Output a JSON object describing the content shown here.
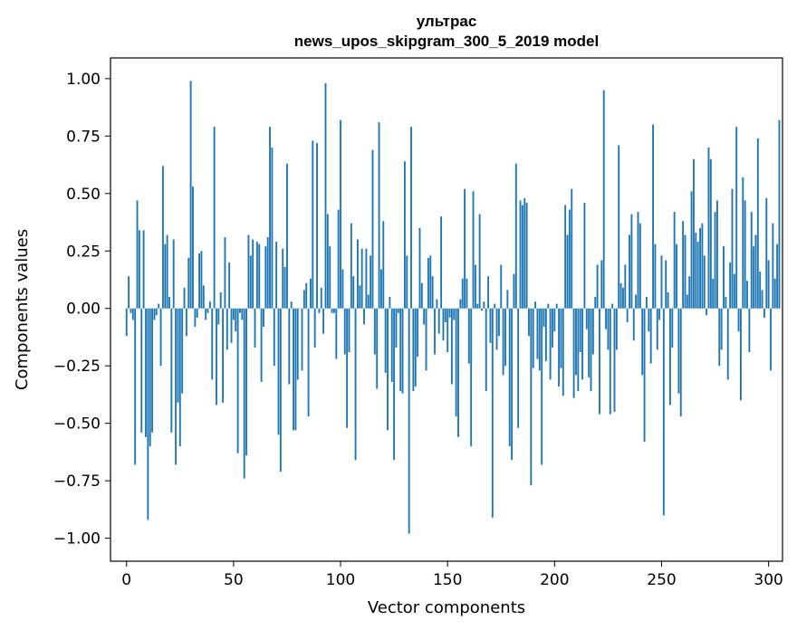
{
  "chart_data": {
    "type": "bar",
    "title": "ультрас",
    "subtitle": "news_upos_skipgram_300_5_2019 model",
    "xlabel": "Vector components",
    "ylabel": "Components values",
    "xlim": [
      -7.5,
      306.5
    ],
    "ylim": [
      -1.1,
      1.09
    ],
    "xticks": [
      0,
      50,
      100,
      150,
      200,
      250,
      300
    ],
    "xtick_labels": [
      "0",
      "50",
      "100",
      "150",
      "200",
      "250",
      "300"
    ],
    "yticks": [
      1.0,
      0.75,
      0.5,
      0.25,
      0.0,
      -0.25,
      -0.5,
      -0.75,
      -1.0
    ],
    "ytick_labels": [
      "1.00",
      "0.75",
      "0.50",
      "0.25",
      "0.00",
      "−0.25",
      "−0.50",
      "−0.75",
      "−1.00"
    ],
    "bar_color": "#1f77b4",
    "grid": false,
    "values": [
      -0.12,
      0.14,
      -0.02,
      -0.05,
      -0.68,
      0.47,
      0.34,
      -0.54,
      0.34,
      -0.56,
      -0.92,
      -0.6,
      -0.54,
      -0.05,
      -0.03,
      0.02,
      -0.25,
      0.62,
      0.28,
      0.32,
      0.05,
      -0.54,
      0.3,
      -0.68,
      -0.41,
      -0.6,
      -0.37,
      0.09,
      -0.12,
      0.22,
      0.99,
      0.53,
      -0.08,
      -0.04,
      0.24,
      0.25,
      0.1,
      -0.05,
      -0.02,
      0.03,
      -0.31,
      0.79,
      -0.42,
      -0.07,
      0.07,
      -0.41,
      0.31,
      -0.18,
      0.2,
      -0.15,
      -0.05,
      -0.1,
      -0.63,
      -0.02,
      -0.05,
      -0.74,
      -0.64,
      0.32,
      0.23,
      0.3,
      -0.17,
      0.29,
      0.28,
      -0.32,
      -0.08,
      0.27,
      0.31,
      0.79,
      0.7,
      -0.25,
      0.29,
      -0.55,
      -0.71,
      0.26,
      0.18,
      0.63,
      -0.33,
      0.03,
      -0.53,
      -0.53,
      -0.31,
      0.0,
      -0.27,
      0.08,
      0.11,
      -0.47,
      0.13,
      0.73,
      -0.17,
      0.72,
      -0.02,
      0.09,
      -0.11,
      0.98,
      0.41,
      0.27,
      -0.02,
      -0.02,
      -0.22,
      0.43,
      0.82,
      0.17,
      -0.2,
      -0.52,
      -0.19,
      0.37,
      0.14,
      -0.66,
      0.3,
      0.1,
      0.26,
      -0.07,
      0.26,
      0.06,
      0.23,
      0.69,
      -0.2,
      -0.35,
      0.81,
      0.17,
      0.38,
      -0.28,
      -0.53,
      0.05,
      -0.32,
      -0.66,
      -0.17,
      -0.02,
      -0.36,
      -0.37,
      0.64,
      0.23,
      -0.98,
      0.79,
      -0.36,
      -0.34,
      -0.21,
      0.35,
      0.11,
      -0.07,
      -0.27,
      0.22,
      0.23,
      0.14,
      -0.2,
      0.04,
      -0.11,
      0.4,
      -0.14,
      -0.06,
      -0.19,
      -0.04,
      -0.33,
      -0.05,
      -0.47,
      -0.56,
      0.04,
      0.13,
      0.52,
      0.13,
      -0.24,
      -0.6,
      0.51,
      0.19,
      0.02,
      0.41,
      -0.01,
      0.03,
      -0.36,
      0.14,
      -0.15,
      -0.91,
      0.02,
      -0.18,
      -0.12,
      0.19,
      -0.29,
      -0.25,
      0.08,
      -0.6,
      -0.66,
      0.15,
      0.63,
      -0.52,
      0.47,
      0.45,
      0.48,
      0.46,
      -0.12,
      -0.77,
      -0.26,
      0.03,
      -0.22,
      -0.27,
      -0.68,
      -0.08,
      -0.23,
      0.02,
      -0.31,
      -0.17,
      -0.1,
      0.02,
      -0.34,
      -0.26,
      -0.38,
      0.45,
      0.32,
      0.43,
      0.52,
      -0.39,
      -0.29,
      -0.36,
      -0.19,
      -0.31,
      0.46,
      -0.09,
      -0.3,
      -0.36,
      -0.2,
      0.05,
      0.19,
      -0.46,
      0.21,
      0.95,
      -0.09,
      -0.18,
      -0.46,
      0.02,
      -0.45,
      -0.18,
      0.71,
      0.11,
      0.09,
      0.19,
      -0.06,
      0.32,
      0.41,
      -0.14,
      0.06,
      0.42,
      0.37,
      -0.29,
      -0.58,
      0.05,
      -0.1,
      -0.24,
      0.8,
      0.28,
      -0.18,
      -0.05,
      0.23,
      -0.9,
      0.21,
      0.07,
      -0.42,
      -0.17,
      0.42,
      0.28,
      -0.37,
      -0.47,
      0.38,
      0.32,
      0.06,
      0.14,
      0.51,
      0.65,
      0.33,
      0.29,
      0.35,
      0.37,
      0.23,
      -0.03,
      0.7,
      0.65,
      0.13,
      0.42,
      0.47,
      -0.25,
      -0.18,
      0.27,
      0.05,
      -0.31,
      0.2,
      0.52,
      0.15,
      0.79,
      -0.1,
      -0.4,
      0.57,
      0.47,
      0.12,
      -0.19,
      0.42,
      0.27,
      0.32,
      0.74,
      0.16,
      0.08,
      -0.04,
      0.48,
      0.21,
      -0.27,
      0.37,
      0.13,
      0.28,
      0.82
    ]
  }
}
